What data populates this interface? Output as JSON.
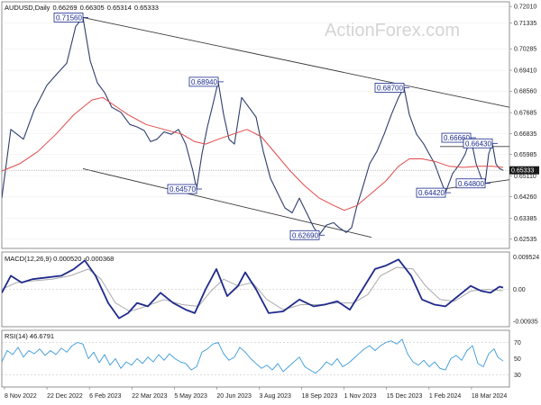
{
  "chart_data": {
    "type": "candlestick",
    "symbol": "AUDUSD",
    "timeframe": "Daily",
    "header_values": [
      "0.66269",
      "0.66305",
      "0.65314",
      "0.65333"
    ],
    "watermark": "ActionForex.com",
    "current_price": "0.65333",
    "x_ticks": [
      "8 Nov 2022",
      "22 Dec 2022",
      "6 Feb 2023",
      "22 Mar 2023",
      "5 May 2023",
      "20 Jun 2023",
      "3 Aug 2023",
      "18 Sep 2023",
      "1 Nov 2023",
      "15 Dec 2023",
      "1 Feb 2024",
      "18 Mar 2024"
    ],
    "price_axis": {
      "ticks": [
        "0.72010",
        "0.71335",
        "0.70285",
        "0.69410",
        "0.68560",
        "0.67685",
        "0.66835",
        "0.65985",
        "0.65110",
        "0.64260",
        "0.63385",
        "0.62535"
      ],
      "ylim": [
        0.6215,
        0.722
      ]
    },
    "price_path": [
      [
        0,
        0.642
      ],
      [
        10,
        0.67
      ],
      [
        24,
        0.666
      ],
      [
        36,
        0.678
      ],
      [
        50,
        0.688
      ],
      [
        62,
        0.693
      ],
      [
        72,
        0.697
      ],
      [
        82,
        0.712
      ],
      [
        90,
        0.7156
      ],
      [
        98,
        0.698
      ],
      [
        106,
        0.689
      ],
      [
        114,
        0.685
      ],
      [
        122,
        0.679
      ],
      [
        132,
        0.677
      ],
      [
        142,
        0.672
      ],
      [
        150,
        0.671
      ],
      [
        158,
        0.6695
      ],
      [
        165,
        0.665
      ],
      [
        172,
        0.666
      ],
      [
        180,
        0.669
      ],
      [
        188,
        0.668
      ],
      [
        196,
        0.67
      ],
      [
        204,
        0.664
      ],
      [
        212,
        0.653
      ],
      [
        216,
        0.6457
      ],
      [
        222,
        0.66
      ],
      [
        228,
        0.671
      ],
      [
        234,
        0.68
      ],
      [
        240,
        0.6894
      ],
      [
        246,
        0.676
      ],
      [
        252,
        0.666
      ],
      [
        258,
        0.664
      ],
      [
        266,
        0.683
      ],
      [
        274,
        0.679
      ],
      [
        282,
        0.675
      ],
      [
        290,
        0.661
      ],
      [
        298,
        0.65
      ],
      [
        306,
        0.644
      ],
      [
        314,
        0.638
      ],
      [
        322,
        0.636
      ],
      [
        330,
        0.642
      ],
      [
        338,
        0.636
      ],
      [
        346,
        0.63
      ],
      [
        352,
        0.627
      ],
      [
        360,
        0.631
      ],
      [
        368,
        0.632
      ],
      [
        374,
        0.63
      ],
      [
        382,
        0.628
      ],
      [
        388,
        0.63
      ],
      [
        394,
        0.639
      ],
      [
        400,
        0.646
      ],
      [
        408,
        0.656
      ],
      [
        416,
        0.661
      ],
      [
        424,
        0.668
      ],
      [
        432,
        0.676
      ],
      [
        440,
        0.683
      ],
      [
        446,
        0.687
      ],
      [
        452,
        0.676
      ],
      [
        460,
        0.668
      ],
      [
        468,
        0.664
      ],
      [
        474,
        0.66
      ],
      [
        480,
        0.656
      ],
      [
        486,
        0.65
      ],
      [
        492,
        0.6442
      ],
      [
        500,
        0.652
      ],
      [
        508,
        0.656
      ],
      [
        514,
        0.66
      ],
      [
        520,
        0.6666
      ],
      [
        526,
        0.656
      ],
      [
        532,
        0.65
      ],
      [
        536,
        0.648
      ],
      [
        540,
        0.66
      ],
      [
        544,
        0.6643
      ],
      [
        548,
        0.656
      ],
      [
        552,
        0.654
      ],
      [
        556,
        0.6533
      ]
    ],
    "moving_average_path": [
      [
        0,
        0.653
      ],
      [
        20,
        0.656
      ],
      [
        40,
        0.661
      ],
      [
        60,
        0.668
      ],
      [
        80,
        0.676
      ],
      [
        100,
        0.682
      ],
      [
        112,
        0.683
      ],
      [
        124,
        0.68
      ],
      [
        140,
        0.676
      ],
      [
        160,
        0.672
      ],
      [
        180,
        0.67
      ],
      [
        200,
        0.668
      ],
      [
        214,
        0.665
      ],
      [
        226,
        0.664
      ],
      [
        240,
        0.666
      ],
      [
        256,
        0.668
      ],
      [
        272,
        0.67
      ],
      [
        288,
        0.667
      ],
      [
        304,
        0.66
      ],
      [
        320,
        0.653
      ],
      [
        336,
        0.647
      ],
      [
        352,
        0.642
      ],
      [
        368,
        0.639
      ],
      [
        380,
        0.637
      ],
      [
        394,
        0.639
      ],
      [
        410,
        0.644
      ],
      [
        426,
        0.649
      ],
      [
        440,
        0.655
      ],
      [
        452,
        0.658
      ],
      [
        466,
        0.658
      ],
      [
        480,
        0.657
      ],
      [
        496,
        0.655
      ],
      [
        512,
        0.6545
      ],
      [
        528,
        0.655
      ],
      [
        544,
        0.655
      ],
      [
        556,
        0.6545
      ]
    ],
    "channel_lines": [
      {
        "from": [
          90,
          0.7156
        ],
        "to": [
          563,
          0.679
        ]
      },
      {
        "from": [
          90,
          0.654
        ],
        "to": [
          410,
          0.626
        ]
      }
    ],
    "wedge_lines": [
      {
        "from": [
          486,
          0.663
        ],
        "to": [
          563,
          0.663
        ]
      },
      {
        "from": [
          486,
          0.6455
        ],
        "to": [
          563,
          0.6495
        ]
      }
    ],
    "level_labels": [
      {
        "text": "0.71560",
        "at": [
          90,
          0.7156
        ],
        "side": "left"
      },
      {
        "text": "0.68940",
        "at": [
          240,
          0.6894
        ],
        "side": "left"
      },
      {
        "text": "0.64570",
        "at": [
          216,
          0.6457
        ],
        "side": "left"
      },
      {
        "text": "0.62690",
        "at": [
          352,
          0.6269
        ],
        "side": "left"
      },
      {
        "text": "0.68700",
        "at": [
          446,
          0.687
        ],
        "side": "left"
      },
      {
        "text": "0.66660",
        "at": [
          520,
          0.6666
        ],
        "side": "left"
      },
      {
        "text": "0.66430",
        "at": [
          544,
          0.6643
        ],
        "side": "left"
      },
      {
        "text": "0.64420",
        "at": [
          492,
          0.6442
        ],
        "side": "left"
      },
      {
        "text": "0.64800",
        "at": [
          536,
          0.648
        ],
        "side": "left"
      }
    ],
    "macd": {
      "label": "MACD(12,26,9) 0.000520 -0.000368",
      "ticks": [
        "0.009524",
        "0.00",
        "-0.00935"
      ],
      "ylim": [
        -0.011,
        0.011
      ],
      "macd_path": [
        [
          0,
          -0.001
        ],
        [
          10,
          0.004
        ],
        [
          22,
          0.002
        ],
        [
          34,
          0.003
        ],
        [
          50,
          0.0035
        ],
        [
          66,
          0.004
        ],
        [
          80,
          0.006
        ],
        [
          92,
          0.0085
        ],
        [
          104,
          0.004
        ],
        [
          118,
          -0.004
        ],
        [
          130,
          -0.0085
        ],
        [
          140,
          -0.007
        ],
        [
          150,
          -0.004
        ],
        [
          162,
          -0.005
        ],
        [
          176,
          -0.001
        ],
        [
          190,
          -0.004
        ],
        [
          204,
          -0.006
        ],
        [
          214,
          -0.007
        ],
        [
          226,
          0.0
        ],
        [
          238,
          0.006
        ],
        [
          250,
          -0.002
        ],
        [
          262,
          0.001
        ],
        [
          270,
          0.005
        ],
        [
          282,
          0.0
        ],
        [
          296,
          -0.007
        ],
        [
          312,
          -0.0065
        ],
        [
          330,
          -0.003
        ],
        [
          346,
          -0.005
        ],
        [
          358,
          -0.0045
        ],
        [
          372,
          -0.0035
        ],
        [
          386,
          -0.006
        ],
        [
          400,
          0.0
        ],
        [
          414,
          0.006
        ],
        [
          426,
          0.007
        ],
        [
          440,
          0.0088
        ],
        [
          454,
          0.004
        ],
        [
          466,
          -0.003
        ],
        [
          480,
          -0.0045
        ],
        [
          492,
          -0.005
        ],
        [
          506,
          -0.002
        ],
        [
          520,
          0.001
        ],
        [
          532,
          -0.0005
        ],
        [
          542,
          -0.001
        ],
        [
          552,
          0.0008
        ],
        [
          556,
          0.0005
        ]
      ],
      "signal_path": [
        [
          0,
          0.0
        ],
        [
          16,
          0.002
        ],
        [
          34,
          0.0025
        ],
        [
          56,
          0.003
        ],
        [
          76,
          0.004
        ],
        [
          96,
          0.006
        ],
        [
          110,
          0.003
        ],
        [
          126,
          -0.004
        ],
        [
          142,
          -0.0065
        ],
        [
          160,
          -0.005
        ],
        [
          180,
          -0.003
        ],
        [
          200,
          -0.0045
        ],
        [
          218,
          -0.005
        ],
        [
          232,
          -0.0005
        ],
        [
          246,
          0.003
        ],
        [
          262,
          0.001
        ],
        [
          278,
          0.002
        ],
        [
          294,
          -0.003
        ],
        [
          312,
          -0.006
        ],
        [
          332,
          -0.0045
        ],
        [
          352,
          -0.0045
        ],
        [
          372,
          -0.004
        ],
        [
          390,
          -0.004
        ],
        [
          406,
          -0.0015
        ],
        [
          420,
          0.004
        ],
        [
          438,
          0.0065
        ],
        [
          456,
          0.006
        ],
        [
          470,
          0.001
        ],
        [
          486,
          -0.003
        ],
        [
          502,
          -0.0035
        ],
        [
          520,
          -0.0005
        ],
        [
          538,
          0.0
        ],
        [
          556,
          -0.0004
        ]
      ]
    },
    "rsi": {
      "label": "RSI(14) 46.6791",
      "ticks": [
        "70",
        "50",
        "30"
      ],
      "ylim": [
        15,
        85
      ],
      "levels": [
        70,
        30
      ],
      "path": [
        [
          0,
          46
        ],
        [
          6,
          60
        ],
        [
          12,
          55
        ],
        [
          18,
          64
        ],
        [
          24,
          52
        ],
        [
          30,
          60
        ],
        [
          36,
          56
        ],
        [
          42,
          62
        ],
        [
          48,
          54
        ],
        [
          54,
          60
        ],
        [
          60,
          55
        ],
        [
          66,
          63
        ],
        [
          72,
          58
        ],
        [
          78,
          66
        ],
        [
          84,
          70
        ],
        [
          90,
          68
        ],
        [
          96,
          50
        ],
        [
          102,
          58
        ],
        [
          108,
          45
        ],
        [
          114,
          55
        ],
        [
          120,
          42
        ],
        [
          126,
          50
        ],
        [
          132,
          38
        ],
        [
          138,
          46
        ],
        [
          144,
          42
        ],
        [
          150,
          50
        ],
        [
          156,
          44
        ],
        [
          162,
          52
        ],
        [
          168,
          46
        ],
        [
          174,
          55
        ],
        [
          180,
          48
        ],
        [
          186,
          56
        ],
        [
          192,
          50
        ],
        [
          198,
          46
        ],
        [
          204,
          44
        ],
        [
          210,
          36
        ],
        [
          216,
          40
        ],
        [
          222,
          58
        ],
        [
          228,
          62
        ],
        [
          234,
          68
        ],
        [
          240,
          70
        ],
        [
          246,
          56
        ],
        [
          252,
          48
        ],
        [
          258,
          52
        ],
        [
          264,
          64
        ],
        [
          270,
          58
        ],
        [
          276,
          50
        ],
        [
          282,
          44
        ],
        [
          288,
          38
        ],
        [
          294,
          42
        ],
        [
          300,
          36
        ],
        [
          306,
          44
        ],
        [
          312,
          34
        ],
        [
          318,
          40
        ],
        [
          324,
          46
        ],
        [
          330,
          52
        ],
        [
          336,
          40
        ],
        [
          342,
          36
        ],
        [
          348,
          32
        ],
        [
          354,
          38
        ],
        [
          360,
          46
        ],
        [
          366,
          42
        ],
        [
          372,
          50
        ],
        [
          378,
          40
        ],
        [
          384,
          44
        ],
        [
          390,
          50
        ],
        [
          396,
          56
        ],
        [
          402,
          62
        ],
        [
          408,
          66
        ],
        [
          414,
          60
        ],
        [
          420,
          66
        ],
        [
          426,
          70
        ],
        [
          432,
          72
        ],
        [
          438,
          68
        ],
        [
          444,
          74
        ],
        [
          450,
          56
        ],
        [
          456,
          46
        ],
        [
          462,
          42
        ],
        [
          468,
          48
        ],
        [
          474,
          40
        ],
        [
          480,
          46
        ],
        [
          486,
          38
        ],
        [
          492,
          36
        ],
        [
          498,
          50
        ],
        [
          504,
          54
        ],
        [
          510,
          48
        ],
        [
          516,
          60
        ],
        [
          522,
          66
        ],
        [
          528,
          44
        ],
        [
          534,
          40
        ],
        [
          540,
          56
        ],
        [
          546,
          62
        ],
        [
          550,
          52
        ],
        [
          556,
          47
        ]
      ]
    }
  }
}
